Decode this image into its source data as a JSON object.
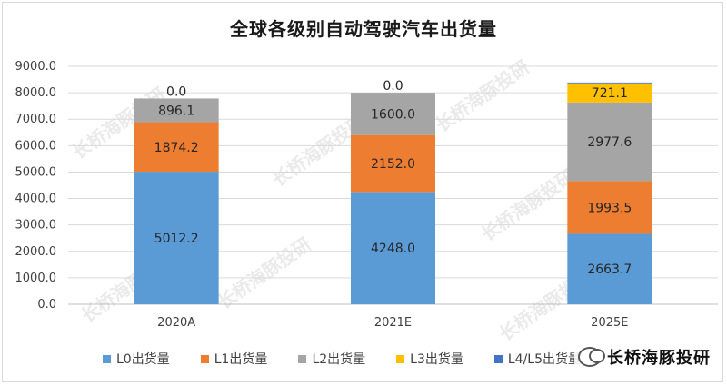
{
  "chart_data": {
    "type": "bar",
    "stacked": true,
    "title": "全球各级别自动驾驶汽车出货量",
    "categories": [
      "2020A",
      "2021E",
      "2025E"
    ],
    "ylim": [
      0,
      9000
    ],
    "yticks": [
      "0.0",
      "1000.0",
      "2000.0",
      "3000.0",
      "4000.0",
      "5000.0",
      "6000.0",
      "7000.0",
      "8000.0",
      "9000.0"
    ],
    "grid": true,
    "legend_position": "bottom",
    "series": [
      {
        "name": "L0出货量",
        "color": "#5b9bd5",
        "values": [
          5012.2,
          4248.0,
          2663.7
        ],
        "labels": [
          "5012.2",
          "4248.0",
          "2663.7"
        ]
      },
      {
        "name": "L1出货量",
        "color": "#ed7d31",
        "values": [
          1874.2,
          2152.0,
          1993.5
        ],
        "labels": [
          "1874.2",
          "2152.0",
          "1993.5"
        ]
      },
      {
        "name": "L2出货量",
        "color": "#a5a5a5",
        "values": [
          896.1,
          1600.0,
          2977.6
        ],
        "labels": [
          "896.1",
          "1600.0",
          "2977.6"
        ]
      },
      {
        "name": "L3出货量",
        "color": "#ffc000",
        "values": [
          0.0,
          0.0,
          721.1
        ],
        "labels": [
          "0.0",
          "0.0",
          "721.1"
        ]
      },
      {
        "name": "L4/L5出货量",
        "color": "#4472c4",
        "values": [
          0,
          0,
          30
        ],
        "labels": [
          "",
          "",
          ""
        ]
      }
    ]
  },
  "watermark": "长桥海豚投研",
  "brand": {
    "name": "长桥海豚投研"
  }
}
